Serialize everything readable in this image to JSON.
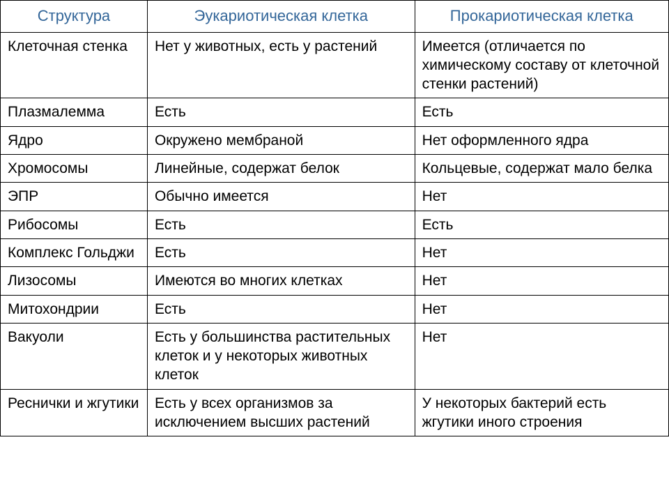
{
  "table": {
    "type": "table",
    "header_color": "#336699",
    "body_color": "#000000",
    "border_color": "#000000",
    "background_color": "#ffffff",
    "header_fontsize": 22,
    "body_fontsize": 21,
    "column_widths_pct": [
      22,
      40,
      38
    ],
    "columns": [
      "Структура",
      "Эукариотическая клетка",
      "Прокариотическая клетка"
    ],
    "rows": [
      [
        "Клеточная стенка",
        "Нет у животных, есть у растений",
        "Имеется (отличается по химическому составу от клеточной стенки растений)"
      ],
      [
        "Плазмалемма",
        "Есть",
        "Есть"
      ],
      [
        "Ядро",
        "Окружено мембраной",
        "Нет оформленного ядра"
      ],
      [
        "Хромосомы",
        "Линейные, содержат белок",
        "Кольцевые, содержат мало белка"
      ],
      [
        "ЭПР",
        "Обычно имеется",
        "Нет"
      ],
      [
        "Рибосомы",
        "Есть",
        "Есть"
      ],
      [
        "Комплекс Гольджи",
        "Есть",
        "Нет"
      ],
      [
        "Лизосомы",
        "Имеются во многих клетках",
        "Нет"
      ],
      [
        "Митохондрии",
        "Есть",
        "Нет"
      ],
      [
        "Вакуоли",
        "Есть у большинства растительных клеток и у некоторых животных клеток",
        "Нет"
      ],
      [
        "Реснички и жгутики",
        "Есть у всех организмов за исключением высших растений",
        "У некоторых бактерий есть жгутики иного строения"
      ]
    ]
  }
}
